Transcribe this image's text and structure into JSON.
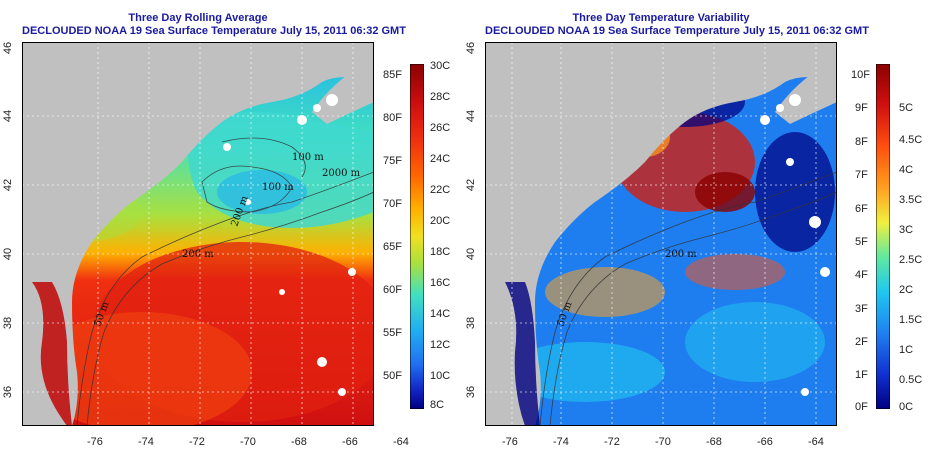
{
  "left_panel": {
    "title_line1": "Three Day Rolling Average",
    "title_line2": "DECLOUDED NOAA 19 Sea Surface Temperature July 15, 2011 06:32 GMT",
    "contours": [
      "100 m",
      "100 m",
      "2000 m",
      "200 m",
      "200 m",
      "50 m"
    ],
    "colorbar_f": [
      "85F",
      "80F",
      "75F",
      "70F",
      "65F",
      "60F",
      "55F",
      "50F"
    ],
    "colorbar_c": [
      "30C",
      "28C",
      "26C",
      "24C",
      "22C",
      "20C",
      "18C",
      "16C",
      "14C",
      "12C",
      "10C",
      "8C"
    ]
  },
  "right_panel": {
    "title_line1": "Three Day Temperature Variability",
    "title_line2": "DECLOUDED NOAA 19 Sea Surface Temperature July 15, 2011 06:32 GMT",
    "contours": [
      "200 m",
      "50 m"
    ],
    "colorbar_f": [
      "10F",
      "9F",
      "8F",
      "7F",
      "6F",
      "5F",
      "4F",
      "3F",
      "2F",
      "1F",
      "0F"
    ],
    "colorbar_c": [
      "5C",
      "4.5C",
      "4C",
      "3.5C",
      "3C",
      "2.5C",
      "2C",
      "1.5C",
      "1C",
      "0.5C",
      "0C"
    ]
  },
  "x_ticks": [
    "-76",
    "-74",
    "-72",
    "-70",
    "-68",
    "-66",
    "-64"
  ],
  "y_ticks": [
    "46",
    "44",
    "42",
    "40",
    "38",
    "36"
  ],
  "colors": {
    "land": "#c0c0c0",
    "title": "#1a1aa0",
    "sst_scale": [
      "#8b0000",
      "#d01010",
      "#f03010",
      "#ff6a00",
      "#ffb000",
      "#f0e020",
      "#a8e040",
      "#40e0c0",
      "#20b0f0",
      "#2070f0",
      "#1020c0",
      "#000080"
    ],
    "var_scale": [
      "#8b0000",
      "#d01010",
      "#ff5010",
      "#ffa020",
      "#f0f040",
      "#60e8a0",
      "#20c8f0",
      "#2080f0",
      "#1030d0",
      "#000080"
    ]
  }
}
